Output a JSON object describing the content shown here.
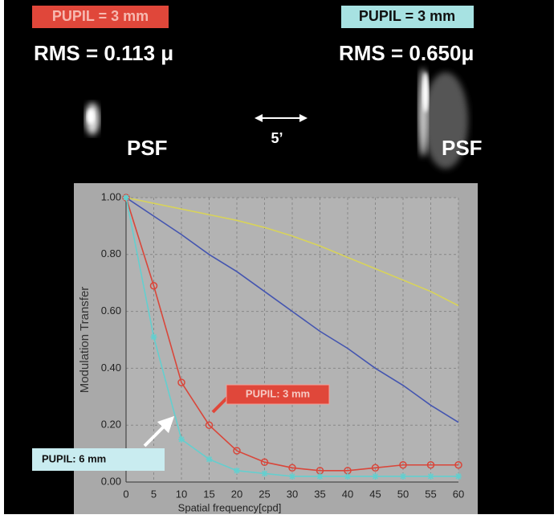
{
  "figure": {
    "left_pupil": "PUPIL = 3 mm",
    "left_rms": "RMS = 0.113 μ",
    "right_pupil": "PUPIL = 3 mm",
    "right_rms": "RMS = 0.650μ",
    "left_psf": "PSF",
    "right_psf": "PSF",
    "scale": "5’"
  },
  "chart_data": {
    "type": "line",
    "xlabel": "Spatial frequency[cpd]",
    "ylabel": "Modulation Transfer",
    "x": [
      0,
      5,
      10,
      15,
      20,
      25,
      30,
      35,
      40,
      45,
      50,
      55,
      60
    ],
    "series": [
      {
        "color": "#d8d35a",
        "marker": "none",
        "values": [
          1.0,
          0.98,
          0.96,
          0.94,
          0.92,
          0.895,
          0.865,
          0.83,
          0.79,
          0.75,
          0.71,
          0.67,
          0.62
        ]
      },
      {
        "color": "#4455b0",
        "marker": "none",
        "values": [
          1.0,
          0.935,
          0.87,
          0.8,
          0.74,
          0.67,
          0.6,
          0.53,
          0.47,
          0.4,
          0.34,
          0.27,
          0.21
        ]
      },
      {
        "color": "#d9463a",
        "marker": "circle",
        "values": [
          1.0,
          0.69,
          0.35,
          0.2,
          0.11,
          0.07,
          0.05,
          0.04,
          0.04,
          0.05,
          0.06,
          0.06,
          0.06
        ]
      },
      {
        "color": "#63cfcf",
        "marker": "star",
        "values": [
          1.0,
          0.51,
          0.15,
          0.08,
          0.04,
          0.03,
          0.02,
          0.02,
          0.02,
          0.02,
          0.02,
          0.02,
          0.02
        ]
      }
    ],
    "xlim": [
      0,
      60
    ],
    "ylim": [
      0,
      1
    ],
    "xticks": [
      0,
      5,
      10,
      15,
      20,
      25,
      30,
      35,
      40,
      45,
      50,
      55,
      60
    ],
    "yticks": [
      {
        "value": 0,
        "label": "0.00"
      },
      {
        "value": 0.2,
        "label": "0.20"
      },
      {
        "value": 0.4,
        "label": "0.40"
      },
      {
        "value": 0.6,
        "label": "0.60"
      },
      {
        "value": 0.8,
        "label": "0.80"
      },
      {
        "value": 1,
        "label": "1.00"
      }
    ],
    "grid": true,
    "annotations": [
      "PUPIL: 3 mm",
      "PUPIL: 6 mm"
    ]
  }
}
